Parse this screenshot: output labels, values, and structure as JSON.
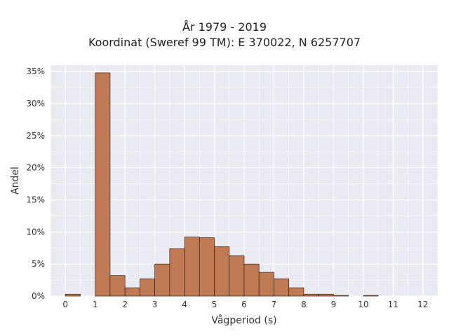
{
  "chart_data": {
    "type": "bar",
    "title": [
      "År 1979 - 2019",
      "Koordinat (Sweref 99 TM): E 370022, N 6257707"
    ],
    "xlabel": "Vågperiod (s)",
    "ylabel": "Andel",
    "xlim": [
      -0.5,
      12.5
    ],
    "ylim": [
      0,
      0.36
    ],
    "x_ticks": [
      0,
      1,
      2,
      3,
      4,
      5,
      6,
      7,
      8,
      9,
      10,
      11,
      12
    ],
    "x_tick_labels": [
      "0",
      "1",
      "2",
      "3",
      "4",
      "5",
      "6",
      "7",
      "8",
      "9",
      "10",
      "11",
      "12"
    ],
    "y_ticks": [
      0,
      0.05,
      0.1,
      0.15,
      0.2,
      0.25,
      0.3,
      0.35
    ],
    "y_tick_labels": [
      "0%",
      "5%",
      "10%",
      "15%",
      "20%",
      "25%",
      "30%",
      "35%"
    ],
    "bin_width": 0.5,
    "bins": [
      {
        "start": 0.0,
        "value": 0.003
      },
      {
        "start": 1.0,
        "value": 0.348
      },
      {
        "start": 1.5,
        "value": 0.032
      },
      {
        "start": 2.0,
        "value": 0.013
      },
      {
        "start": 2.5,
        "value": 0.027
      },
      {
        "start": 3.0,
        "value": 0.05
      },
      {
        "start": 3.5,
        "value": 0.074
      },
      {
        "start": 4.0,
        "value": 0.092
      },
      {
        "start": 4.5,
        "value": 0.091
      },
      {
        "start": 5.0,
        "value": 0.077
      },
      {
        "start": 5.5,
        "value": 0.063
      },
      {
        "start": 6.0,
        "value": 0.05
      },
      {
        "start": 6.5,
        "value": 0.037
      },
      {
        "start": 7.0,
        "value": 0.027
      },
      {
        "start": 7.5,
        "value": 0.013
      },
      {
        "start": 8.0,
        "value": 0.003
      },
      {
        "start": 8.5,
        "value": 0.003
      },
      {
        "start": 9.0,
        "value": 0.001
      },
      {
        "start": 10.0,
        "value": 0.001
      }
    ],
    "grid": true,
    "colors": {
      "bar_fill": "#c07a53",
      "bar_edge": "#3a2418",
      "plot_bg": "#eaeaf2",
      "grid": "#ffffff"
    }
  }
}
